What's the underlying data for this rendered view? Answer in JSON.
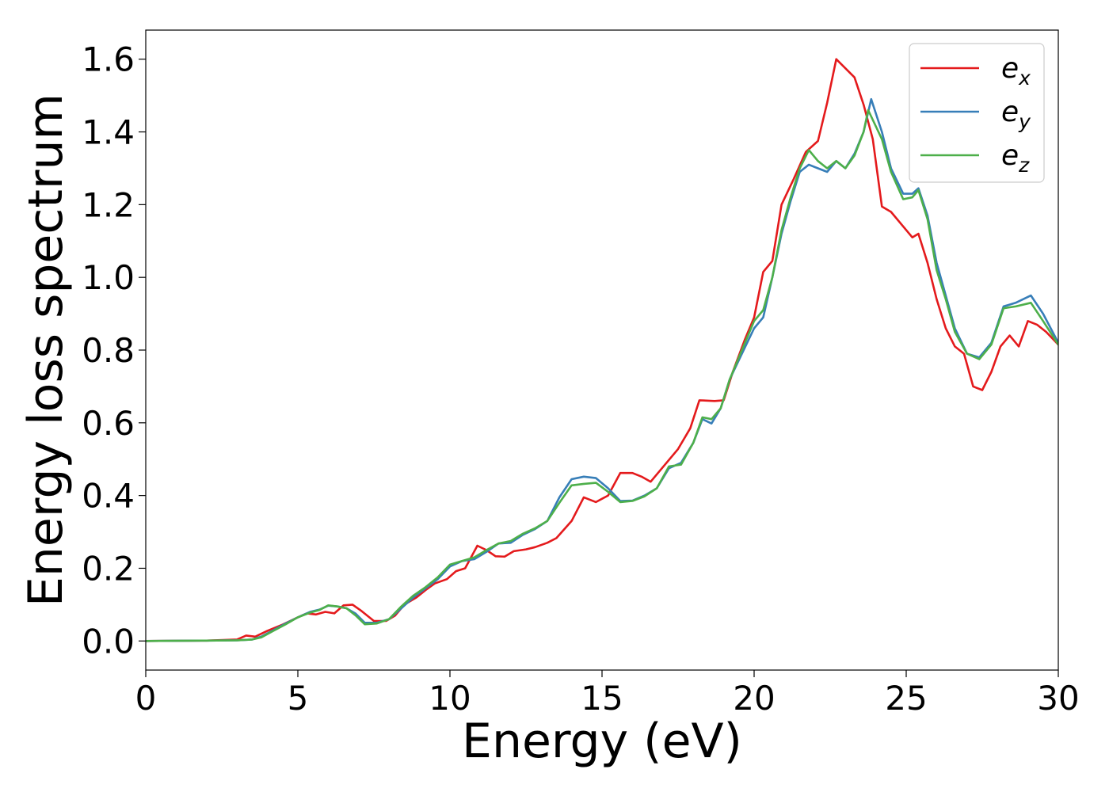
{
  "chart_data": {
    "type": "line",
    "xlabel": "Energy (eV)",
    "ylabel": "Energy loss spectrum",
    "xlim": [
      0,
      30
    ],
    "ylim": [
      -0.08,
      1.68
    ],
    "xticks": [
      0,
      5,
      10,
      15,
      20,
      25,
      30
    ],
    "xtick_labels": [
      "0",
      "5",
      "10",
      "15",
      "20",
      "25",
      "30"
    ],
    "yticks": [
      0.0,
      0.2,
      0.4,
      0.6,
      0.8,
      1.0,
      1.2,
      1.4,
      1.6
    ],
    "ytick_labels": [
      "0.0",
      "0.2",
      "0.4",
      "0.6",
      "0.8",
      "1.0",
      "1.2",
      "1.4",
      "1.6"
    ],
    "grid": false,
    "legend_position": "top-right",
    "series": [
      {
        "name": "e",
        "subscript": "x",
        "color": "#e41a1c",
        "points": [
          [
            0,
            0
          ],
          [
            2,
            0.001
          ],
          [
            3,
            0.004
          ],
          [
            3.3,
            0.015
          ],
          [
            3.6,
            0.012
          ],
          [
            4,
            0.028
          ],
          [
            4.5,
            0.045
          ],
          [
            5,
            0.065
          ],
          [
            5.3,
            0.076
          ],
          [
            5.6,
            0.073
          ],
          [
            5.9,
            0.08
          ],
          [
            6.2,
            0.076
          ],
          [
            6.5,
            0.098
          ],
          [
            6.8,
            0.1
          ],
          [
            7.1,
            0.082
          ],
          [
            7.5,
            0.055
          ],
          [
            7.9,
            0.055
          ],
          [
            8.2,
            0.07
          ],
          [
            8.5,
            0.1
          ],
          [
            8.9,
            0.12
          ],
          [
            9.2,
            0.14
          ],
          [
            9.5,
            0.158
          ],
          [
            9.9,
            0.17
          ],
          [
            10.2,
            0.192
          ],
          [
            10.5,
            0.2
          ],
          [
            10.9,
            0.262
          ],
          [
            11.2,
            0.25
          ],
          [
            11.5,
            0.233
          ],
          [
            11.8,
            0.232
          ],
          [
            12.1,
            0.247
          ],
          [
            12.5,
            0.252
          ],
          [
            12.8,
            0.258
          ],
          [
            13.2,
            0.27
          ],
          [
            13.5,
            0.283
          ],
          [
            14,
            0.33
          ],
          [
            14.4,
            0.395
          ],
          [
            14.8,
            0.382
          ],
          [
            15.2,
            0.4
          ],
          [
            15.6,
            0.462
          ],
          [
            16,
            0.462
          ],
          [
            16.3,
            0.452
          ],
          [
            16.6,
            0.438
          ],
          [
            17,
            0.478
          ],
          [
            17.5,
            0.528
          ],
          [
            17.9,
            0.585
          ],
          [
            18.2,
            0.662
          ],
          [
            18.7,
            0.66
          ],
          [
            19,
            0.662
          ],
          [
            19.3,
            0.74
          ],
          [
            19.7,
            0.83
          ],
          [
            20,
            0.89
          ],
          [
            20.3,
            1.015
          ],
          [
            20.6,
            1.045
          ],
          [
            20.9,
            1.2
          ],
          [
            21.3,
            1.27
          ],
          [
            21.7,
            1.345
          ],
          [
            22.1,
            1.375
          ],
          [
            22.4,
            1.48
          ],
          [
            22.7,
            1.6
          ],
          [
            23,
            1.575
          ],
          [
            23.3,
            1.55
          ],
          [
            23.6,
            1.475
          ],
          [
            23.9,
            1.38
          ],
          [
            24.2,
            1.195
          ],
          [
            24.5,
            1.18
          ],
          [
            24.9,
            1.14
          ],
          [
            25.2,
            1.11
          ],
          [
            25.4,
            1.12
          ],
          [
            25.7,
            1.04
          ],
          [
            26,
            0.94
          ],
          [
            26.3,
            0.86
          ],
          [
            26.6,
            0.81
          ],
          [
            26.9,
            0.79
          ],
          [
            27.2,
            0.7
          ],
          [
            27.5,
            0.69
          ],
          [
            27.8,
            0.74
          ],
          [
            28.1,
            0.81
          ],
          [
            28.4,
            0.84
          ],
          [
            28.7,
            0.81
          ],
          [
            29,
            0.88
          ],
          [
            29.3,
            0.87
          ],
          [
            29.6,
            0.85
          ],
          [
            30,
            0.815
          ]
        ]
      },
      {
        "name": "e",
        "subscript": "y",
        "color": "#377eb8",
        "points": [
          [
            0,
            0
          ],
          [
            2,
            0.001
          ],
          [
            3,
            0.002
          ],
          [
            3.5,
            0.004
          ],
          [
            3.8,
            0.012
          ],
          [
            4.2,
            0.03
          ],
          [
            4.6,
            0.048
          ],
          [
            5,
            0.065
          ],
          [
            5.4,
            0.08
          ],
          [
            5.7,
            0.086
          ],
          [
            6,
            0.097
          ],
          [
            6.3,
            0.095
          ],
          [
            6.6,
            0.09
          ],
          [
            6.9,
            0.075
          ],
          [
            7.2,
            0.05
          ],
          [
            7.6,
            0.05
          ],
          [
            8,
            0.06
          ],
          [
            8.4,
            0.09
          ],
          [
            8.8,
            0.12
          ],
          [
            9.2,
            0.145
          ],
          [
            9.6,
            0.17
          ],
          [
            10,
            0.205
          ],
          [
            10.4,
            0.22
          ],
          [
            10.8,
            0.225
          ],
          [
            11.2,
            0.245
          ],
          [
            11.6,
            0.268
          ],
          [
            12,
            0.27
          ],
          [
            12.4,
            0.292
          ],
          [
            12.8,
            0.308
          ],
          [
            13.2,
            0.33
          ],
          [
            13.6,
            0.395
          ],
          [
            14,
            0.445
          ],
          [
            14.4,
            0.452
          ],
          [
            14.8,
            0.448
          ],
          [
            15.2,
            0.42
          ],
          [
            15.6,
            0.385
          ],
          [
            16,
            0.386
          ],
          [
            16.4,
            0.4
          ],
          [
            16.8,
            0.42
          ],
          [
            17.2,
            0.475
          ],
          [
            17.6,
            0.49
          ],
          [
            18,
            0.545
          ],
          [
            18.3,
            0.61
          ],
          [
            18.6,
            0.598
          ],
          [
            18.9,
            0.64
          ],
          [
            19.2,
            0.72
          ],
          [
            19.6,
            0.79
          ],
          [
            20,
            0.86
          ],
          [
            20.3,
            0.89
          ],
          [
            20.6,
            1.0
          ],
          [
            20.9,
            1.12
          ],
          [
            21.2,
            1.21
          ],
          [
            21.5,
            1.29
          ],
          [
            21.8,
            1.31
          ],
          [
            22.1,
            1.3
          ],
          [
            22.4,
            1.29
          ],
          [
            22.7,
            1.32
          ],
          [
            23,
            1.3
          ],
          [
            23.3,
            1.34
          ],
          [
            23.6,
            1.4
          ],
          [
            23.85,
            1.49
          ],
          [
            24.2,
            1.4
          ],
          [
            24.5,
            1.3
          ],
          [
            24.9,
            1.23
          ],
          [
            25.2,
            1.23
          ],
          [
            25.4,
            1.245
          ],
          [
            25.7,
            1.17
          ],
          [
            26,
            1.04
          ],
          [
            26.3,
            0.95
          ],
          [
            26.6,
            0.86
          ],
          [
            27,
            0.79
          ],
          [
            27.4,
            0.78
          ],
          [
            27.8,
            0.82
          ],
          [
            28.2,
            0.92
          ],
          [
            28.6,
            0.93
          ],
          [
            29.1,
            0.95
          ],
          [
            29.5,
            0.9
          ],
          [
            30,
            0.82
          ]
        ]
      },
      {
        "name": "e",
        "subscript": "z",
        "color": "#4daf4a",
        "points": [
          [
            0,
            0
          ],
          [
            2,
            0.001
          ],
          [
            3,
            0.002
          ],
          [
            3.5,
            0.004
          ],
          [
            3.8,
            0.01
          ],
          [
            4.2,
            0.028
          ],
          [
            4.6,
            0.046
          ],
          [
            5,
            0.065
          ],
          [
            5.4,
            0.078
          ],
          [
            5.7,
            0.085
          ],
          [
            6,
            0.098
          ],
          [
            6.3,
            0.095
          ],
          [
            6.6,
            0.09
          ],
          [
            6.9,
            0.07
          ],
          [
            7.2,
            0.046
          ],
          [
            7.6,
            0.048
          ],
          [
            8,
            0.06
          ],
          [
            8.4,
            0.095
          ],
          [
            8.8,
            0.125
          ],
          [
            9.2,
            0.148
          ],
          [
            9.6,
            0.175
          ],
          [
            10,
            0.21
          ],
          [
            10.4,
            0.22
          ],
          [
            10.8,
            0.23
          ],
          [
            11.2,
            0.25
          ],
          [
            11.6,
            0.268
          ],
          [
            12,
            0.275
          ],
          [
            12.4,
            0.295
          ],
          [
            12.8,
            0.31
          ],
          [
            13.2,
            0.33
          ],
          [
            13.6,
            0.38
          ],
          [
            14,
            0.428
          ],
          [
            14.4,
            0.432
          ],
          [
            14.8,
            0.435
          ],
          [
            15.2,
            0.41
          ],
          [
            15.6,
            0.382
          ],
          [
            16,
            0.385
          ],
          [
            16.4,
            0.398
          ],
          [
            16.8,
            0.42
          ],
          [
            17.2,
            0.48
          ],
          [
            17.6,
            0.485
          ],
          [
            18,
            0.545
          ],
          [
            18.3,
            0.615
          ],
          [
            18.6,
            0.61
          ],
          [
            18.9,
            0.64
          ],
          [
            19.2,
            0.72
          ],
          [
            19.6,
            0.8
          ],
          [
            20,
            0.88
          ],
          [
            20.3,
            0.91
          ],
          [
            20.6,
            1.0
          ],
          [
            20.9,
            1.13
          ],
          [
            21.2,
            1.22
          ],
          [
            21.5,
            1.3
          ],
          [
            21.8,
            1.35
          ],
          [
            22.1,
            1.32
          ],
          [
            22.4,
            1.3
          ],
          [
            22.7,
            1.32
          ],
          [
            23,
            1.3
          ],
          [
            23.3,
            1.335
          ],
          [
            23.6,
            1.4
          ],
          [
            23.75,
            1.46
          ],
          [
            24.2,
            1.38
          ],
          [
            24.5,
            1.29
          ],
          [
            24.9,
            1.215
          ],
          [
            25.2,
            1.22
          ],
          [
            25.4,
            1.24
          ],
          [
            25.7,
            1.16
          ],
          [
            26,
            1.02
          ],
          [
            26.3,
            0.94
          ],
          [
            26.6,
            0.85
          ],
          [
            27,
            0.79
          ],
          [
            27.4,
            0.775
          ],
          [
            27.8,
            0.815
          ],
          [
            28.2,
            0.915
          ],
          [
            28.6,
            0.92
          ],
          [
            29.1,
            0.93
          ],
          [
            29.5,
            0.88
          ],
          [
            30,
            0.815
          ]
        ]
      }
    ]
  }
}
